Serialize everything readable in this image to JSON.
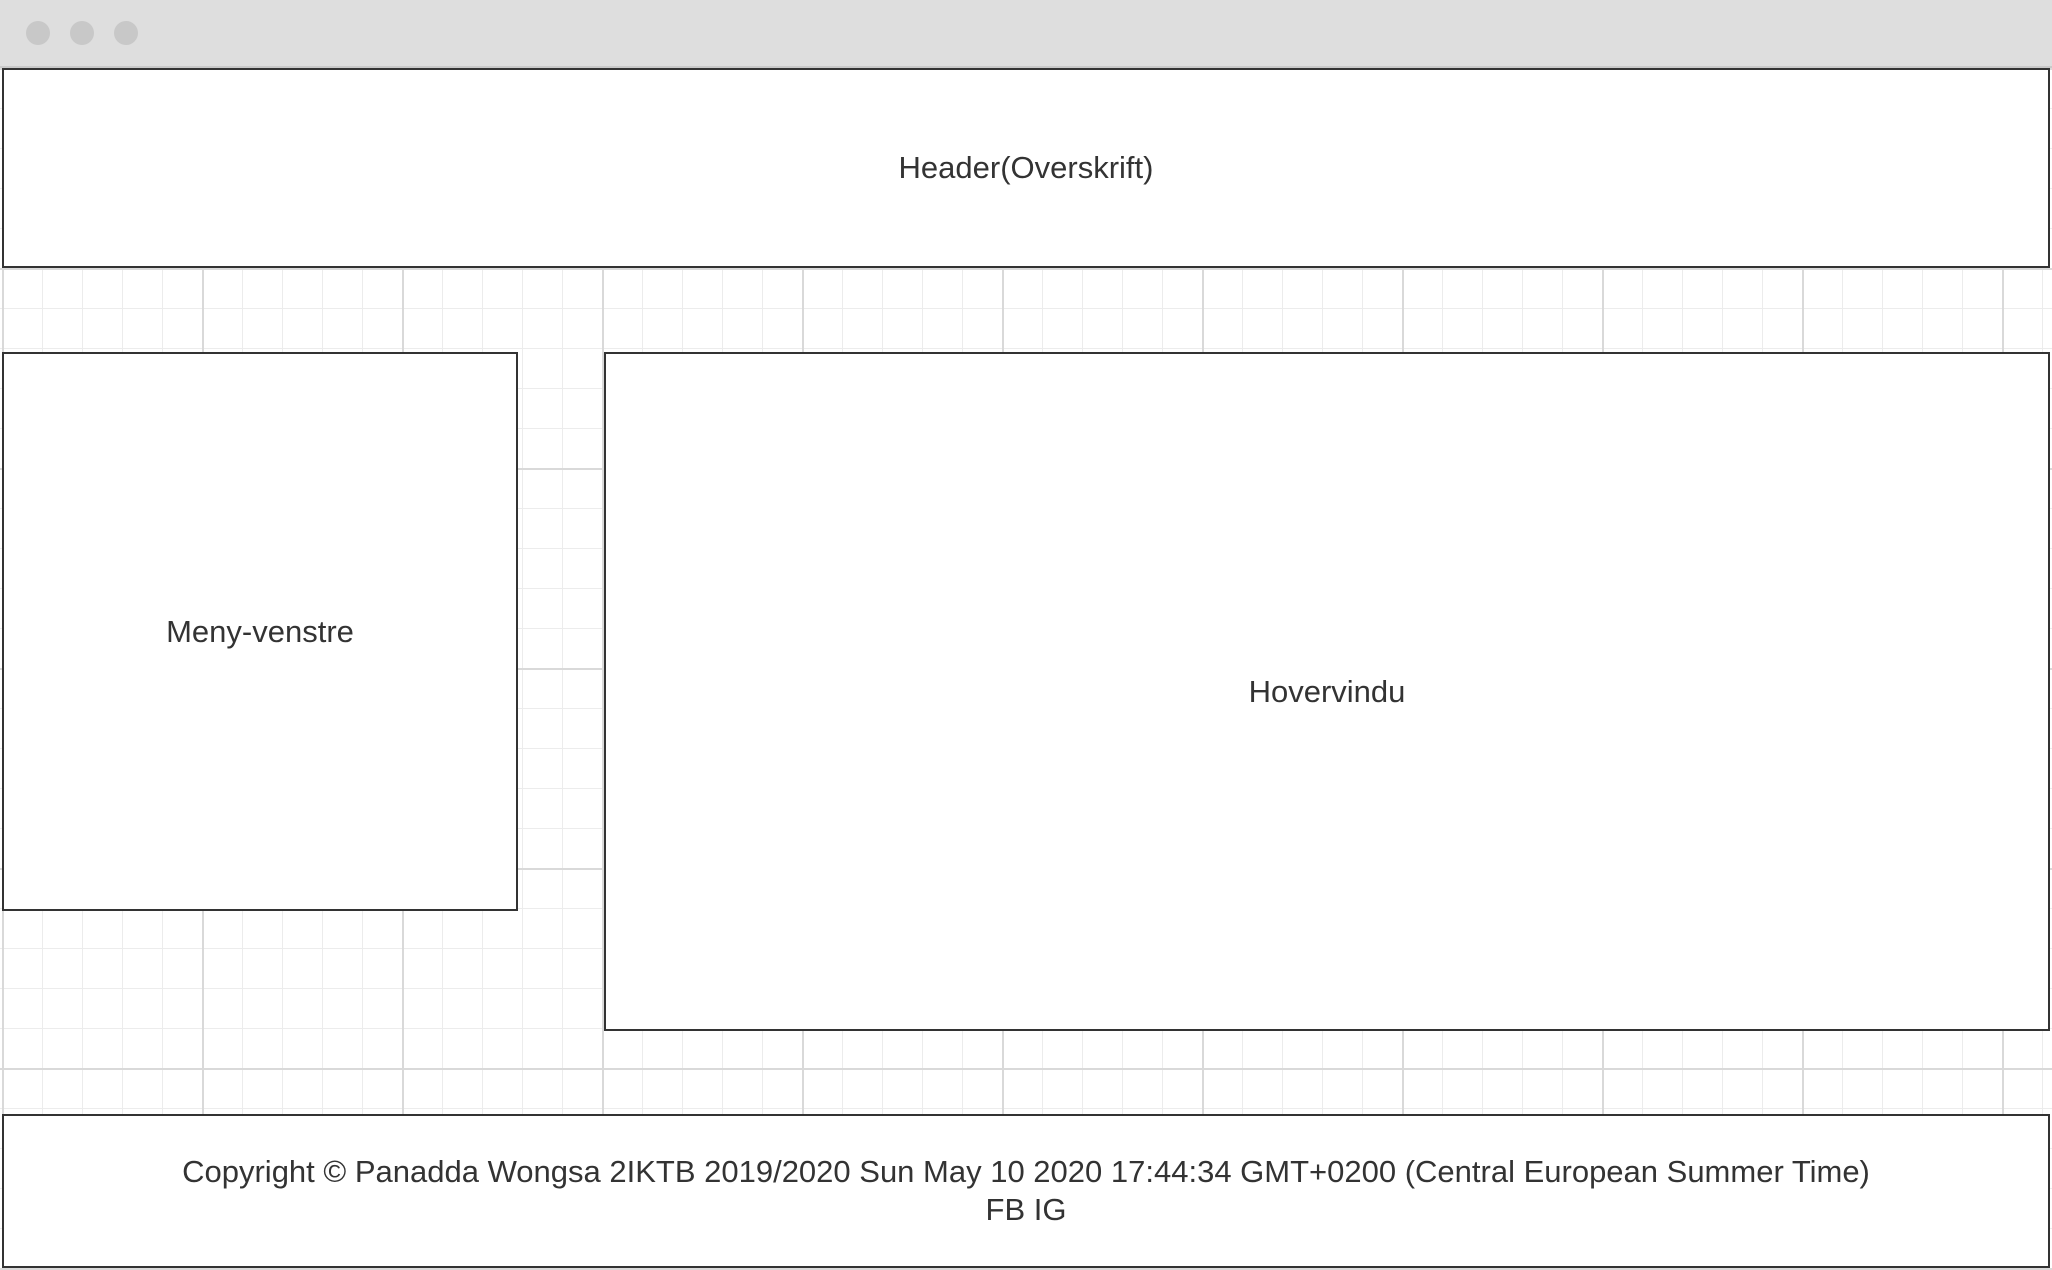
{
  "wireframe": {
    "header_label": "Header(Overskrift)",
    "menu_label": "Meny-venstre",
    "main_label": "Hovervindu",
    "footer": {
      "copyright_line": "Copyright © Panadda Wongsa 2IKTB 2019/2020 Sun May 10 2020 17:44:34 GMT+0200 (Central European Summer Time)",
      "social_line": "FB IG"
    }
  }
}
